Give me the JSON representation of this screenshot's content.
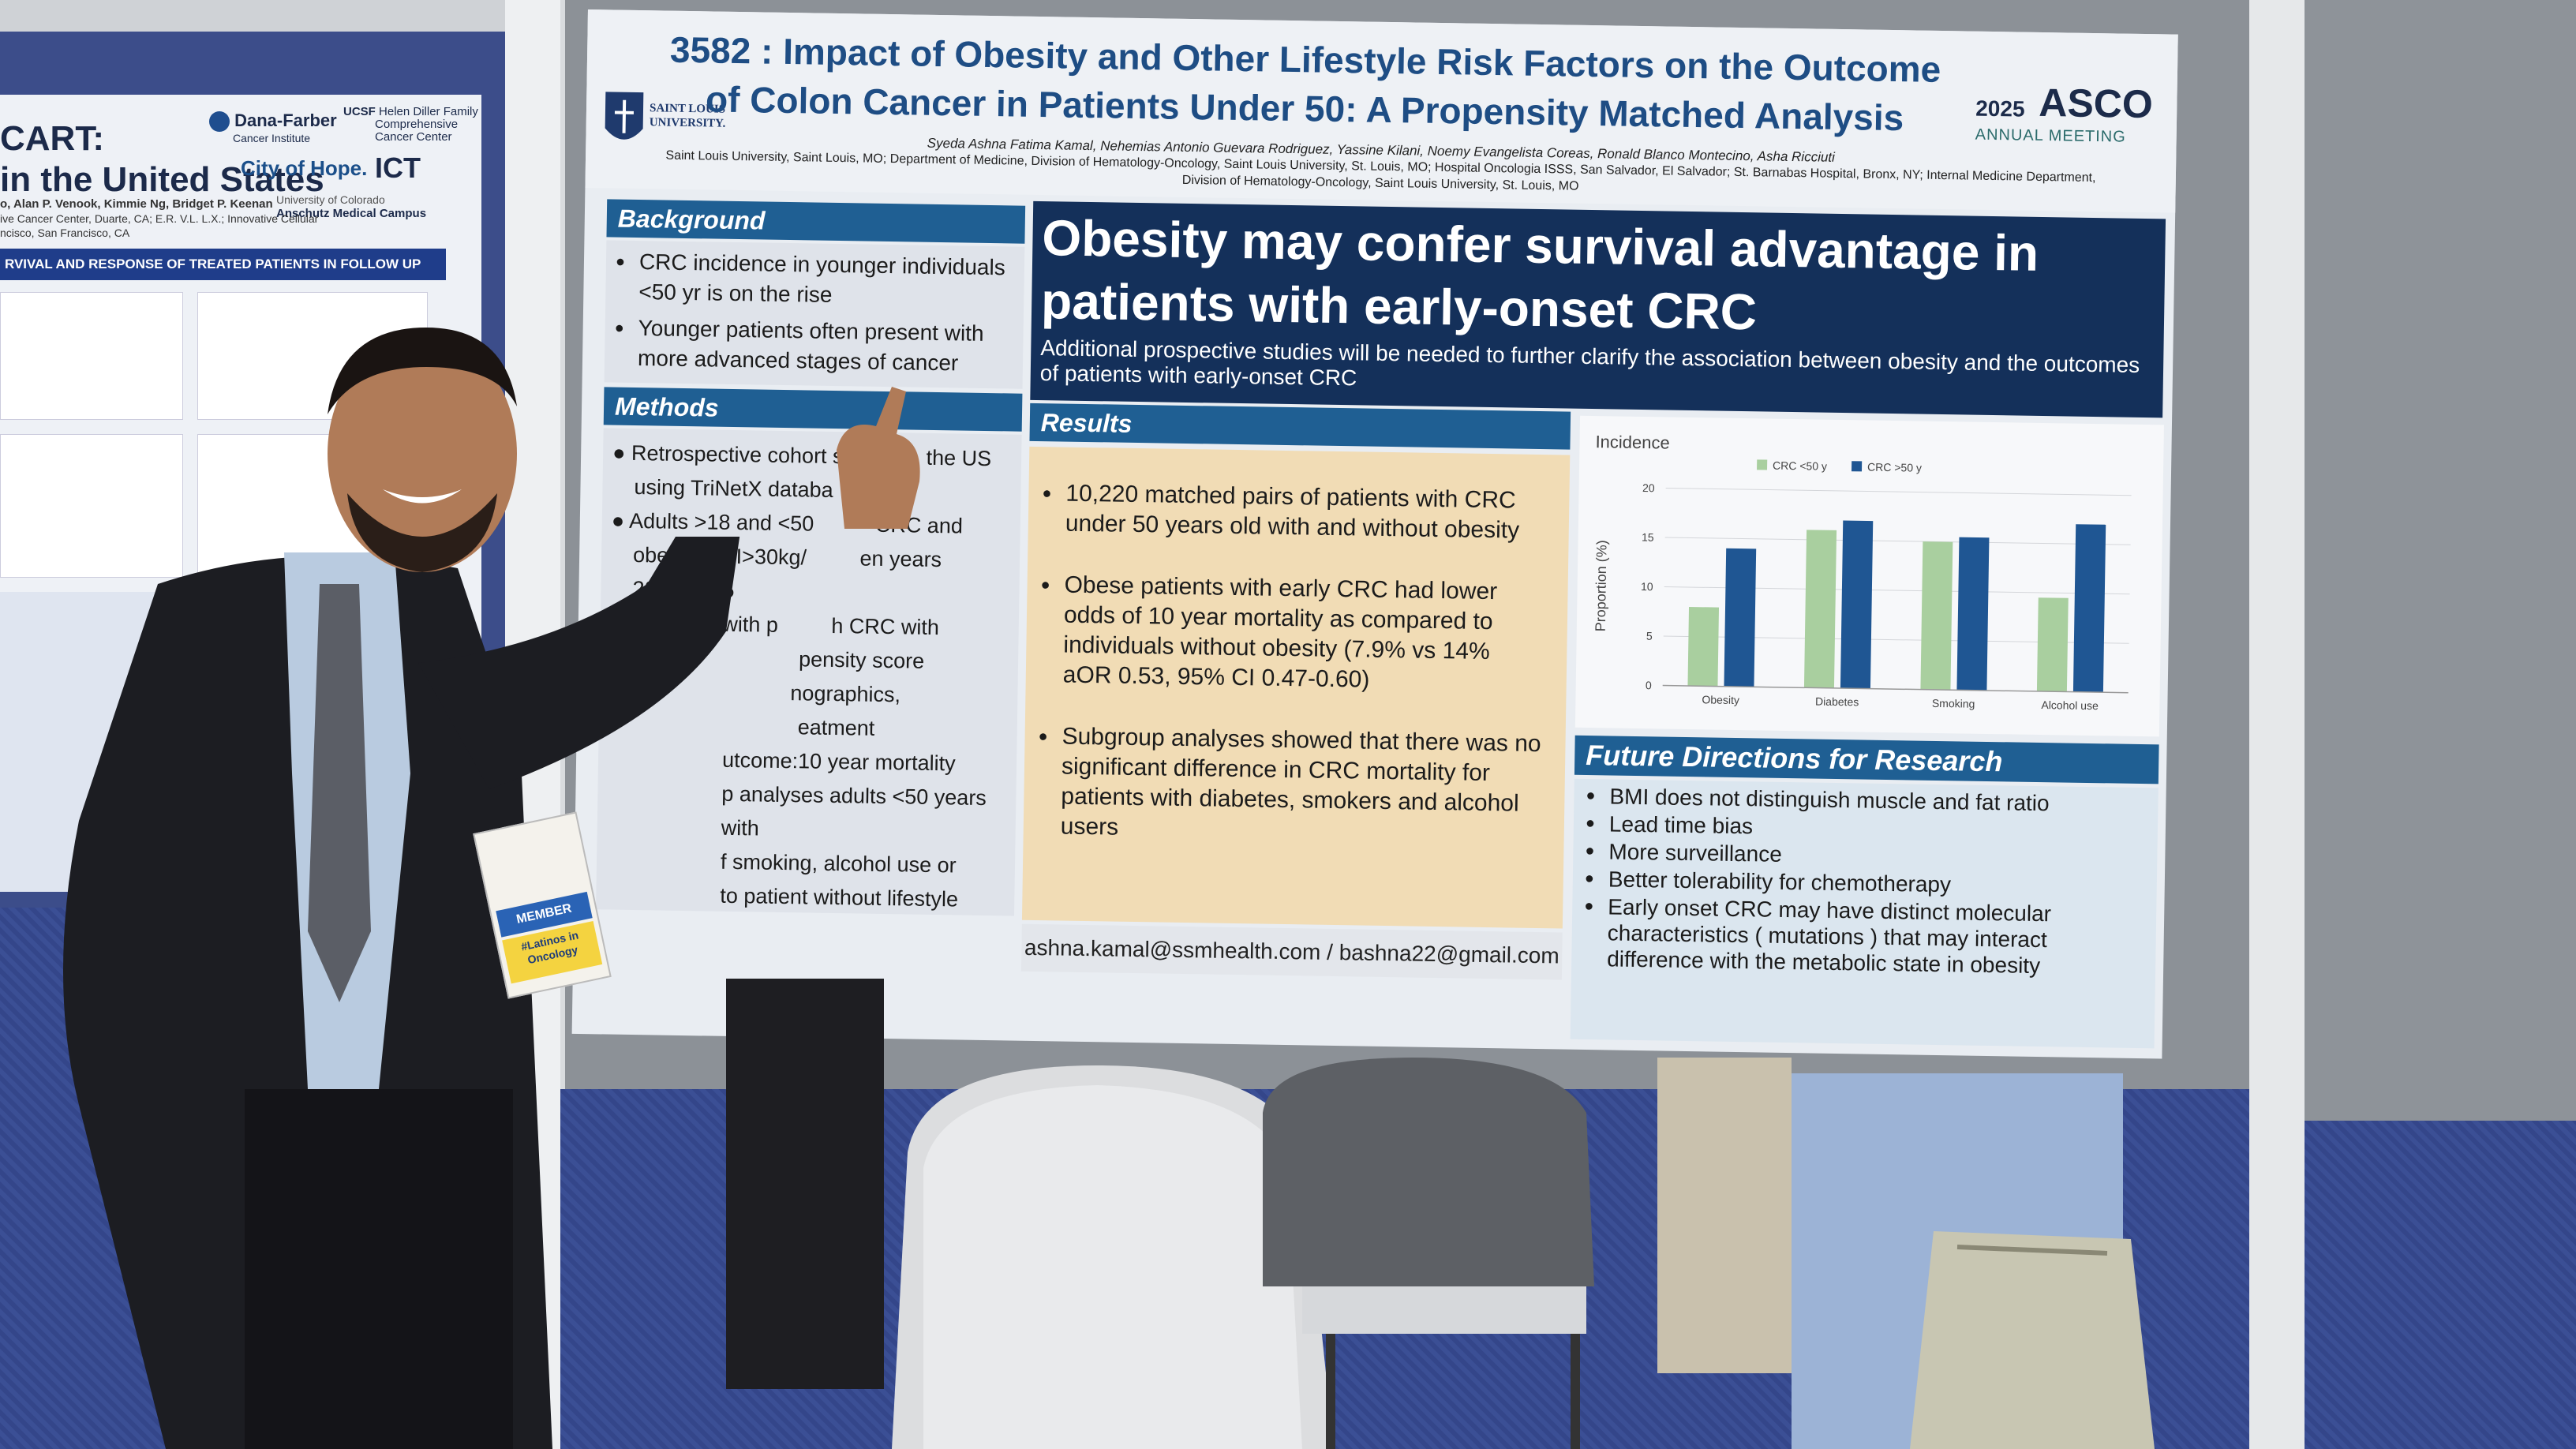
{
  "left_poster": {
    "title_line1": "CART:",
    "title_line2": "in the United States",
    "logos": [
      "Dana-Farber",
      "Cancer Institute",
      "UCSF",
      "Helen Diller Family",
      "Comprehensive",
      "Cancer Center",
      "City of Hope.",
      "ICT",
      "University of Colorado",
      "Anschutz Medical Campus"
    ],
    "authors_line1": "o, Alan P. Venook, Kimmie Ng, Bridget P. Keenan",
    "authors_line2": "ive Cancer Center, Duarte, CA; E.R. V.L. L.X.; Innovative Cellular",
    "authors_line3": "ncisco, San Francisco, CA",
    "bar_title": "RVIVAL AND RESPONSE OF TREATED PATIENTS IN FOLLOW UP"
  },
  "poster": {
    "title_line1": "3582 : Impact of Obesity and Other Lifestyle Risk Factors on the Outcome",
    "title_line2": "of Colon Cancer in Patients Under 50: A Propensity Matched Analysis",
    "university_line1": "SAINT LOUIS",
    "university_line2": "UNIVERSITY.",
    "asco_year": "2025",
    "asco_name": "ASCO",
    "asco_meeting": "ANNUAL MEETING",
    "authors": "Syeda Ashna Fatima Kamal, Nehemias Antonio Guevara Rodriguez, Yassine Kilani, Noemy Evangelista Coreas, Ronald Blanco Montecino, Asha Ricciuti",
    "affiliations_line1": "Saint Louis University, Saint Louis, MO; Department of Medicine, Division of Hematology-Oncology, Saint Louis University, St. Louis, MO; Hospital Oncologia ISSS, San Salvador, El Salvador; St. Barnabas Hospital, Bronx, NY; Internal Medicine Department,",
    "affiliations_line2": "Division of Hematology-Oncology, Saint Louis University, St. Louis, MO",
    "background": {
      "heading": "Background",
      "items": [
        "CRC incidence in younger individuals <50 yr is on the rise",
        "Younger patients often present with more advanced stages of cancer"
      ]
    },
    "methods": {
      "heading": "Methods",
      "items": [
        "Retrospective cohort st",
        "the US",
        "using TriNetX databa",
        "Adults >18 and <50",
        "CRC and",
        "obese (BMI>30kg/",
        "en years",
        "2005-2025",
        "hed with p",
        "h CRC with",
        "pensity score",
        "nographics,",
        "eatment",
        "utcome:10 year mortality",
        "p analyses adults <50 years with",
        "f smoking, alcohol use or",
        "to patient without lifestyle"
      ]
    },
    "banner": {
      "headline": "Obesity may confer survival advantage in patients with early-onset CRC",
      "subtext": "Additional prospective studies will be needed to further clarify the association between obesity and the outcomes of patients with early-onset CRC"
    },
    "results": {
      "heading": "Results",
      "items": [
        "10,220 matched pairs of patients with CRC under 50 years old with and without obesity",
        "Obese patients with early CRC had lower odds of 10 year mortality as compared to individuals without obesity (7.9% vs 14% aOR 0.53, 95% CI 0.47-0.60)",
        "Subgroup analyses showed that there was no significant difference in CRC mortality for patients with diabetes, smokers and alcohol users"
      ]
    },
    "email": "ashna.kamal@ssmhealth.com / bashna22@gmail.com",
    "future": {
      "heading": "Future Directions for Research",
      "items": [
        "BMI does not distinguish muscle and fat ratio",
        "Lead time bias",
        "More surveillance",
        "Better tolerability for chemotherapy",
        "Early onset CRC may have distinct molecular characteristics ( mutations ) that may interact difference with the metabolic state in obesity"
      ]
    }
  },
  "badge": {
    "member": "MEMBER",
    "ribbon": "#Latinos in Oncology"
  },
  "colors": {
    "section_header": "#1f5f93",
    "banner": "#14305a",
    "results_panel": "#f1dcb5",
    "series_under50": "#a9cf9f",
    "series_over50": "#1f5693"
  },
  "chart_data": {
    "type": "bar",
    "title": "Incidence",
    "ylabel": "Proportion (%)",
    "xlabel": "",
    "categories": [
      "Obesity",
      "Diabetes",
      "Smoking",
      "Alcohol use"
    ],
    "series": [
      {
        "name": "CRC <50 y",
        "values": [
          8,
          16,
          15,
          9.5
        ]
      },
      {
        "name": "CRC >50 y",
        "values": [
          14,
          17,
          15.5,
          17
        ]
      }
    ],
    "ylim": [
      0,
      20
    ],
    "yticks": [
      0,
      5,
      10,
      15,
      20
    ],
    "legend": "top",
    "grid": true
  }
}
